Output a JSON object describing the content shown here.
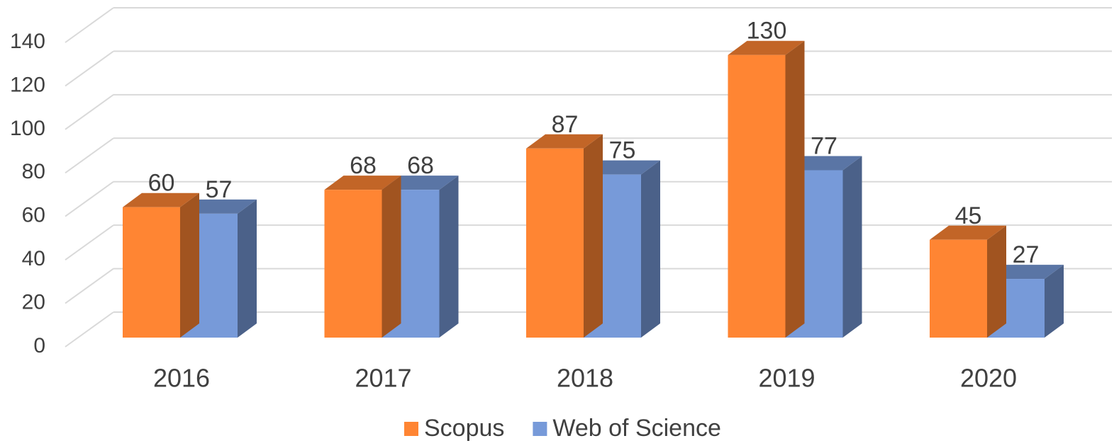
{
  "chart_data": {
    "type": "bar",
    "categories": [
      "2016",
      "2017",
      "2018",
      "2019",
      "2020"
    ],
    "series": [
      {
        "name": "Scopus",
        "color": "#FF8533",
        "values": [
          60,
          68,
          87,
          130,
          45
        ]
      },
      {
        "name": "Web of Science",
        "color": "#779AD9",
        "values": [
          57,
          68,
          75,
          77,
          27
        ]
      }
    ],
    "ylim": [
      0,
      140
    ],
    "yticks": [
      0,
      20,
      40,
      60,
      80,
      100,
      120,
      140
    ],
    "grid": true,
    "legend": "bottom"
  }
}
